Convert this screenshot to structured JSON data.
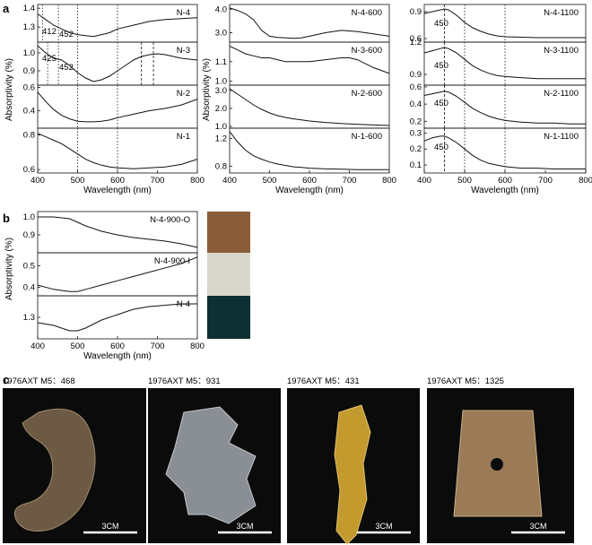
{
  "panel_letters": {
    "a": "a",
    "b": "b",
    "c": "c"
  },
  "colors": {
    "axis": "#111111",
    "curve": "#111111",
    "photo_bg": "#0b0b0b",
    "scale_bar": "#ffffff"
  },
  "section_a": {
    "columns": [
      {
        "ylabel": "Absorptivity (%)",
        "xlabel": "Wavelength (nm)",
        "xticks": [
          "400",
          "500",
          "600",
          "700",
          "800"
        ],
        "panels": [
          {
            "label": "N-4",
            "yticks": [
              "1.4",
              "1.3"
            ],
            "annotations": [
              "412",
              "452"
            ]
          },
          {
            "label": "N-3",
            "yticks": [
              "1.0",
              "0.9"
            ],
            "annotations": [
              "425",
              "452"
            ]
          },
          {
            "label": "N-2",
            "yticks": [
              "0.6",
              "0.4"
            ],
            "annotations": []
          },
          {
            "label": "N-1",
            "yticks": [
              "0.8",
              "0.6"
            ],
            "annotations": []
          }
        ]
      },
      {
        "ylabel": "Absorptivity (%)",
        "xlabel": "Wavelength (nm)",
        "xticks": [
          "400",
          "500",
          "600",
          "700",
          "800"
        ],
        "panels": [
          {
            "label": "N-4-600",
            "yticks": [
              "4.0",
              "3.0"
            ],
            "annotations": []
          },
          {
            "label": "N-3-600",
            "yticks": [
              "1.1",
              "1.0"
            ],
            "annotations": []
          },
          {
            "label": "N-2-600",
            "yticks": [
              "3.0",
              "2.0",
              "1.0"
            ],
            "annotations": []
          },
          {
            "label": "N-1-600",
            "yticks": [
              "1.2",
              "0.8"
            ],
            "annotations": []
          }
        ]
      },
      {
        "ylabel": "",
        "xlabel": "Wavelength (nm)",
        "xticks": [
          "400",
          "500",
          "600",
          "700",
          "800"
        ],
        "panels": [
          {
            "label": "N-4-1100",
            "yticks": [
              "0.9",
              "0.6"
            ],
            "annotations": [
              "450"
            ]
          },
          {
            "label": "N-3-1100",
            "yticks": [
              "1.2",
              "0.9"
            ],
            "annotations": [
              "450"
            ]
          },
          {
            "label": "N-2-1100",
            "yticks": [
              "0.6",
              "0.4",
              "0.2"
            ],
            "annotations": [
              "450"
            ]
          },
          {
            "label": "N-1-1100",
            "yticks": [
              "0.3",
              "0.2",
              "0.1"
            ],
            "annotations": [
              "450"
            ]
          }
        ]
      }
    ]
  },
  "section_b": {
    "ylabel": "Absorptivity (%)",
    "xlabel": "Wavelength (nm)",
    "xticks": [
      "400",
      "500",
      "600",
      "700",
      "800"
    ],
    "panels": [
      {
        "label": "N-4-900-O",
        "yticks": [
          "1.0",
          "0.9"
        ]
      },
      {
        "label": "N-4-900-I",
        "yticks": [
          "0.5",
          "0.4"
        ]
      },
      {
        "label": "N-4",
        "yticks": [
          "1.3"
        ]
      }
    ],
    "swatch_colors": [
      "#8a5d3a",
      "#d9d7cc",
      "#0e2f33"
    ]
  },
  "section_c": {
    "photos": [
      {
        "caption": "1976AXT M5：468",
        "scale": "3CM",
        "icon": "dragon-pendant-photo"
      },
      {
        "caption": "1976AXT M5：931",
        "scale": "3CM",
        "icon": "phoenix-plaque-photo"
      },
      {
        "caption": "1976AXT M5：431",
        "scale": "3CM",
        "icon": "bird-figure-photo"
      },
      {
        "caption": "1976AXT M5：1325",
        "scale": "3CM",
        "icon": "axe-blade-photo"
      }
    ]
  },
  "chart_data": [
    {
      "type": "line",
      "title": "N-4",
      "x": [
        400,
        420,
        440,
        460,
        480,
        500,
        520,
        540,
        560,
        580,
        600,
        640,
        680,
        720,
        760,
        800
      ],
      "values": [
        1.37,
        1.34,
        1.31,
        1.29,
        1.27,
        1.26,
        1.255,
        1.25,
        1.26,
        1.27,
        1.29,
        1.31,
        1.33,
        1.34,
        1.345,
        1.35
      ],
      "xlim": [
        400,
        800
      ],
      "ylim": [
        1.22,
        1.42
      ]
    },
    {
      "type": "line",
      "title": "N-3",
      "x": [
        400,
        420,
        440,
        460,
        480,
        500,
        520,
        540,
        560,
        580,
        600,
        620,
        640,
        660,
        680,
        700,
        720,
        760,
        800
      ],
      "values": [
        1.04,
        1.0,
        0.97,
        0.96,
        0.93,
        0.89,
        0.86,
        0.84,
        0.85,
        0.87,
        0.9,
        0.93,
        0.96,
        0.98,
        0.99,
        0.995,
        0.99,
        0.97,
        0.96
      ],
      "xlim": [
        400,
        800
      ],
      "ylim": [
        0.82,
        1.06
      ]
    },
    {
      "type": "line",
      "title": "N-2",
      "x": [
        400,
        420,
        440,
        460,
        480,
        500,
        520,
        540,
        560,
        580,
        600,
        640,
        680,
        720,
        760,
        800
      ],
      "values": [
        0.56,
        0.48,
        0.41,
        0.36,
        0.33,
        0.31,
        0.305,
        0.305,
        0.31,
        0.32,
        0.34,
        0.37,
        0.4,
        0.42,
        0.45,
        0.5
      ],
      "xlim": [
        400,
        800
      ],
      "ylim": [
        0.25,
        0.62
      ]
    },
    {
      "type": "line",
      "title": "N-1",
      "x": [
        400,
        420,
        440,
        460,
        480,
        500,
        520,
        540,
        560,
        580,
        600,
        640,
        680,
        720,
        760,
        800
      ],
      "values": [
        0.81,
        0.79,
        0.77,
        0.75,
        0.72,
        0.69,
        0.66,
        0.64,
        0.625,
        0.615,
        0.61,
        0.605,
        0.61,
        0.615,
        0.63,
        0.66
      ],
      "xlim": [
        400,
        800
      ],
      "ylim": [
        0.58,
        0.84
      ]
    },
    {
      "type": "line",
      "title": "N-4-600",
      "x": [
        400,
        420,
        440,
        460,
        480,
        500,
        520,
        540,
        560,
        580,
        600,
        640,
        680,
        720,
        760,
        800
      ],
      "values": [
        4.05,
        3.95,
        3.8,
        3.55,
        3.1,
        2.85,
        2.8,
        2.78,
        2.76,
        2.78,
        2.85,
        3.0,
        3.1,
        3.05,
        2.95,
        2.85
      ],
      "xlim": [
        400,
        800
      ],
      "ylim": [
        2.6,
        4.2
      ]
    },
    {
      "type": "line",
      "title": "N-3-600",
      "x": [
        400,
        420,
        440,
        460,
        480,
        500,
        520,
        540,
        560,
        580,
        600,
        640,
        680,
        700,
        720,
        760,
        800
      ],
      "values": [
        1.18,
        1.16,
        1.14,
        1.13,
        1.12,
        1.12,
        1.11,
        1.1,
        1.1,
        1.1,
        1.1,
        1.11,
        1.12,
        1.12,
        1.11,
        1.07,
        1.04
      ],
      "xlim": [
        400,
        800
      ],
      "ylim": [
        0.98,
        1.2
      ]
    },
    {
      "type": "line",
      "title": "N-2-600",
      "x": [
        400,
        420,
        440,
        460,
        480,
        500,
        520,
        540,
        560,
        580,
        600,
        640,
        680,
        720,
        760,
        800
      ],
      "values": [
        3.1,
        2.8,
        2.5,
        2.2,
        1.95,
        1.75,
        1.6,
        1.5,
        1.42,
        1.36,
        1.3,
        1.22,
        1.16,
        1.12,
        1.08,
        1.05
      ],
      "xlim": [
        400,
        800
      ],
      "ylim": [
        0.9,
        3.3
      ]
    },
    {
      "type": "line",
      "title": "N-1-600",
      "x": [
        400,
        420,
        440,
        460,
        480,
        500,
        520,
        540,
        560,
        580,
        600,
        640,
        680,
        720,
        760,
        800
      ],
      "values": [
        1.3,
        1.15,
        1.03,
        0.95,
        0.9,
        0.86,
        0.83,
        0.81,
        0.79,
        0.78,
        0.77,
        0.76,
        0.755,
        0.75,
        0.75,
        0.75
      ],
      "xlim": [
        400,
        800
      ],
      "ylim": [
        0.7,
        1.35
      ]
    },
    {
      "type": "line",
      "title": "N-4-1100",
      "x": [
        400,
        420,
        440,
        450,
        460,
        480,
        500,
        520,
        540,
        560,
        580,
        600,
        640,
        680,
        720,
        760,
        800
      ],
      "values": [
        0.88,
        0.9,
        0.92,
        0.93,
        0.92,
        0.86,
        0.78,
        0.72,
        0.68,
        0.65,
        0.63,
        0.62,
        0.615,
        0.61,
        0.61,
        0.61,
        0.61
      ],
      "xlim": [
        400,
        800
      ],
      "ylim": [
        0.56,
        0.98
      ]
    },
    {
      "type": "line",
      "title": "N-3-1100",
      "x": [
        400,
        420,
        440,
        450,
        460,
        480,
        500,
        520,
        540,
        560,
        580,
        600,
        640,
        680,
        720,
        760,
        800
      ],
      "values": [
        1.1,
        1.12,
        1.14,
        1.15,
        1.14,
        1.1,
        1.04,
        0.98,
        0.94,
        0.91,
        0.89,
        0.88,
        0.87,
        0.86,
        0.86,
        0.86,
        0.86
      ],
      "xlim": [
        400,
        800
      ],
      "ylim": [
        0.8,
        1.2
      ]
    },
    {
      "type": "line",
      "title": "N-2-1100",
      "x": [
        400,
        420,
        440,
        450,
        460,
        480,
        500,
        520,
        540,
        560,
        580,
        600,
        640,
        680,
        720,
        760,
        800
      ],
      "values": [
        0.5,
        0.52,
        0.54,
        0.55,
        0.54,
        0.49,
        0.42,
        0.35,
        0.3,
        0.26,
        0.23,
        0.21,
        0.19,
        0.18,
        0.18,
        0.17,
        0.17
      ],
      "xlim": [
        400,
        800
      ],
      "ylim": [
        0.12,
        0.62
      ]
    },
    {
      "type": "line",
      "title": "N-1-1100",
      "x": [
        400,
        420,
        440,
        450,
        460,
        480,
        500,
        520,
        540,
        560,
        580,
        600,
        640,
        680,
        720,
        760,
        800
      ],
      "values": [
        0.25,
        0.27,
        0.28,
        0.28,
        0.27,
        0.24,
        0.2,
        0.16,
        0.13,
        0.11,
        0.1,
        0.09,
        0.08,
        0.08,
        0.075,
        0.075,
        0.075
      ],
      "xlim": [
        400,
        800
      ],
      "ylim": [
        0.05,
        0.33
      ]
    },
    {
      "type": "line",
      "title": "N-4-900-O",
      "x": [
        400,
        440,
        480,
        500,
        520,
        560,
        600,
        640,
        680,
        720,
        760,
        800
      ],
      "values": [
        1.0,
        1.0,
        0.99,
        0.97,
        0.95,
        0.92,
        0.9,
        0.885,
        0.875,
        0.865,
        0.85,
        0.83
      ],
      "xlim": [
        400,
        800
      ],
      "ylim": [
        0.8,
        1.03
      ]
    },
    {
      "type": "line",
      "title": "N-4-900-I",
      "x": [
        400,
        440,
        480,
        500,
        520,
        560,
        600,
        640,
        680,
        720,
        760,
        800
      ],
      "values": [
        0.41,
        0.39,
        0.38,
        0.38,
        0.39,
        0.41,
        0.43,
        0.45,
        0.47,
        0.49,
        0.51,
        0.54
      ],
      "xlim": [
        400,
        800
      ],
      "ylim": [
        0.36,
        0.56
      ]
    },
    {
      "type": "line",
      "title": "N-4",
      "x": [
        400,
        440,
        480,
        500,
        520,
        560,
        600,
        640,
        680,
        720,
        760,
        800
      ],
      "values": [
        1.28,
        1.27,
        1.25,
        1.25,
        1.26,
        1.29,
        1.31,
        1.33,
        1.34,
        1.345,
        1.35,
        1.35
      ],
      "xlim": [
        400,
        800
      ],
      "ylim": [
        1.22,
        1.38
      ]
    }
  ]
}
